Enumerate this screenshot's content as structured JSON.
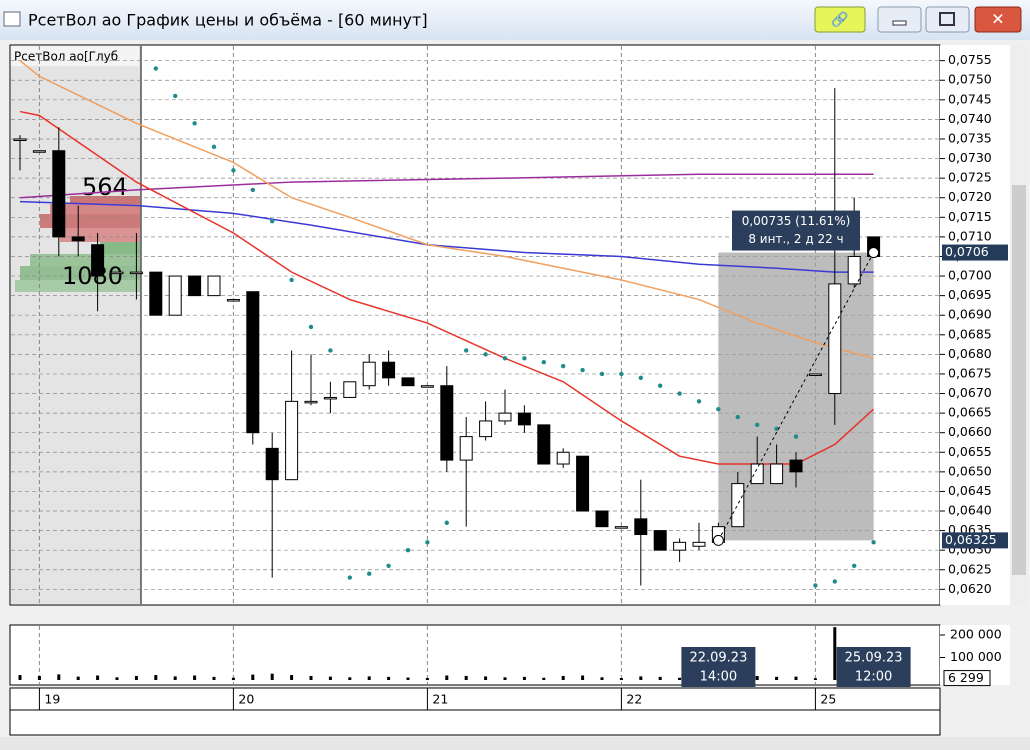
{
  "window": {
    "title": "РсетВол ао График цены и объёма - [60 минут]"
  },
  "chart_data": [
    {
      "type": "candlestick",
      "subtitle": "РсетВол ао[Глуб",
      "categories": [
        null,
        "19",
        null,
        null,
        null,
        null,
        null,
        null,
        null,
        null,
        null,
        "20",
        null,
        null,
        null,
        null,
        null,
        null,
        null,
        null,
        null,
        "21",
        null,
        null,
        null,
        null,
        null,
        null,
        null,
        null,
        null,
        "22",
        null,
        null,
        null,
        null,
        null,
        null,
        null,
        null,
        null,
        "25",
        null,
        null,
        null
      ],
      "open": [
        0.0735,
        0.0732,
        0.0732,
        0.071,
        0.0708,
        0.0701,
        0.0701,
        0.0701,
        0.069,
        0.07,
        0.0695,
        0.0694,
        0.0696,
        0.0656,
        0.0648,
        0.0668,
        0.0669,
        0.0669,
        0.0672,
        0.0678,
        0.0674,
        0.0672,
        0.0672,
        0.0653,
        0.0659,
        0.0663,
        0.0665,
        0.0662,
        0.0652,
        0.0654,
        0.064,
        0.0636,
        0.0638,
        0.0635,
        0.063,
        0.0631,
        0.0632,
        0.0636,
        0.0647,
        0.0647,
        0.0653,
        0.0675,
        0.067,
        0.0698,
        0.071
      ],
      "high": [
        0.0736,
        0.0732,
        0.0738,
        0.0718,
        0.0711,
        0.0701,
        0.0711,
        0.0701,
        0.07,
        0.07,
        0.07,
        0.0694,
        0.0696,
        0.066,
        0.0681,
        0.068,
        0.0673,
        0.0673,
        0.068,
        0.0681,
        0.0674,
        0.0672,
        0.0677,
        0.0664,
        0.0668,
        0.0671,
        0.0667,
        0.0662,
        0.0656,
        0.0654,
        0.064,
        0.0636,
        0.0648,
        0.0635,
        0.0633,
        0.0637,
        0.0637,
        0.065,
        0.0659,
        0.0657,
        0.0655,
        0.0675,
        0.0748,
        0.072,
        0.071
      ],
      "low": [
        0.0727,
        0.0732,
        0.0705,
        0.0705,
        0.0691,
        0.0701,
        0.0694,
        0.069,
        0.069,
        0.0695,
        0.0695,
        0.0694,
        0.0657,
        0.0623,
        0.0648,
        0.0667,
        0.0665,
        0.0669,
        0.0671,
        0.0672,
        0.0672,
        0.0672,
        0.065,
        0.0636,
        0.0658,
        0.0662,
        0.066,
        0.0652,
        0.0651,
        0.064,
        0.0636,
        0.0636,
        0.0621,
        0.063,
        0.0627,
        0.063,
        0.0632,
        0.0636,
        0.0647,
        0.0647,
        0.0646,
        0.0675,
        0.0662,
        0.0697,
        0.0705
      ],
      "close": [
        0.0735,
        0.0732,
        0.071,
        0.0709,
        0.07,
        0.0701,
        0.0701,
        0.069,
        0.07,
        0.0695,
        0.07,
        0.0694,
        0.066,
        0.0648,
        0.0668,
        0.0668,
        0.0669,
        0.0673,
        0.0678,
        0.0674,
        0.0672,
        0.0672,
        0.0653,
        0.0659,
        0.0663,
        0.0665,
        0.0662,
        0.0652,
        0.0655,
        0.064,
        0.0636,
        0.0636,
        0.0634,
        0.063,
        0.0632,
        0.0632,
        0.0636,
        0.0647,
        0.0652,
        0.0652,
        0.065,
        0.0675,
        0.0698,
        0.0705,
        0.0705
      ],
      "series": [
        {
          "style": "line",
          "color": "#9b2d9b",
          "x": [
            0,
            6,
            14,
            25,
            35,
            44
          ],
          "values": [
            0.072,
            0.0722,
            0.0724,
            0.0725,
            0.0726,
            0.0726
          ]
        },
        {
          "style": "line",
          "color": "#3a3ad6",
          "x": [
            0,
            6,
            11,
            15,
            21,
            26,
            31,
            35,
            39,
            42,
            44
          ],
          "values": [
            0.0719,
            0.0718,
            0.0716,
            0.0713,
            0.0708,
            0.0706,
            0.0705,
            0.0703,
            0.0702,
            0.0701,
            0.0701
          ]
        },
        {
          "style": "line",
          "color": "#f0a060",
          "x": [
            0,
            1,
            6,
            11,
            14,
            17,
            21,
            25,
            28,
            31,
            35,
            38,
            41,
            44
          ],
          "values": [
            0.0755,
            0.0751,
            0.0739,
            0.0729,
            0.072,
            0.0715,
            0.0708,
            0.0705,
            0.0702,
            0.0699,
            0.0694,
            0.0688,
            0.0683,
            0.0679
          ]
        },
        {
          "style": "line",
          "color": "#e8332a",
          "x": [
            0,
            1,
            6,
            11,
            14,
            17,
            21,
            25,
            28,
            31,
            34,
            36,
            40,
            42,
            44
          ],
          "values": [
            0.0742,
            0.0741,
            0.0724,
            0.0711,
            0.0701,
            0.0694,
            0.0688,
            0.0679,
            0.0673,
            0.0663,
            0.0654,
            0.0652,
            0.0652,
            0.0657,
            0.0666
          ]
        },
        {
          "style": "dots",
          "color": "#1e8c8c",
          "x": [
            7,
            8,
            9,
            10,
            11,
            12,
            13,
            14,
            15,
            16,
            17,
            18,
            19,
            20,
            21,
            22,
            23,
            24,
            25,
            26,
            27,
            28,
            29,
            30,
            31,
            32,
            33,
            34,
            35,
            36,
            37,
            38,
            39,
            40,
            41,
            42,
            43,
            44
          ],
          "values": [
            0.0753,
            0.0746,
            0.0739,
            0.0733,
            0.0727,
            0.0722,
            0.0714,
            0.0699,
            0.0687,
            0.0681,
            0.0623,
            0.0624,
            0.0626,
            0.063,
            0.0632,
            0.0637,
            0.0681,
            0.068,
            0.0679,
            0.0679,
            0.0678,
            0.0677,
            0.0676,
            0.0675,
            0.0675,
            0.0674,
            0.0672,
            0.067,
            0.0668,
            0.0666,
            0.0664,
            0.0662,
            0.0661,
            0.0659,
            0.0621,
            0.0622,
            0.0626,
            0.0632
          ]
        }
      ],
      "ylim": [
        0.0616,
        0.0759
      ],
      "yticks": [
        {
          "value": 0.062,
          "label": "0,0620"
        },
        {
          "value": 0.0625,
          "label": "0,0625"
        },
        {
          "value": 0.063,
          "label": "0,0630"
        },
        {
          "value": 0.0635,
          "label": "0,0635"
        },
        {
          "value": 0.064,
          "label": "0,0640"
        },
        {
          "value": 0.0645,
          "label": "0,0645"
        },
        {
          "value": 0.065,
          "label": "0,0650"
        },
        {
          "value": 0.0655,
          "label": "0,0655"
        },
        {
          "value": 0.066,
          "label": "0,0660"
        },
        {
          "value": 0.0665,
          "label": "0,0665"
        },
        {
          "value": 0.067,
          "label": "0,0670"
        },
        {
          "value": 0.0675,
          "label": "0,0675"
        },
        {
          "value": 0.068,
          "label": "0,0680"
        },
        {
          "value": 0.0685,
          "label": "0,0685"
        },
        {
          "value": 0.069,
          "label": "0,0690"
        },
        {
          "value": 0.0695,
          "label": "0,0695"
        },
        {
          "value": 0.07,
          "label": "0,0700"
        },
        {
          "value": 0.0705,
          "label": "0,0705"
        },
        {
          "value": 0.071,
          "label": "0,0710"
        },
        {
          "value": 0.0715,
          "label": "0,0715"
        },
        {
          "value": 0.072,
          "label": "0,0720"
        },
        {
          "value": 0.0725,
          "label": "0,0725"
        },
        {
          "value": 0.073,
          "label": "0,0730"
        },
        {
          "value": 0.0735,
          "label": "0,0735"
        },
        {
          "value": 0.074,
          "label": "0,0740"
        },
        {
          "value": 0.0745,
          "label": "0,0745"
        },
        {
          "value": 0.075,
          "label": "0,0750"
        },
        {
          "value": 0.0755,
          "label": "0,0755"
        }
      ],
      "grid": true,
      "profile_labels": [
        564,
        1080
      ],
      "price_markers": [
        {
          "value": 0.0706,
          "label": "0,0706"
        },
        {
          "value": 0.06325,
          "label": "0,06325"
        }
      ],
      "measure": {
        "x": [
          36,
          44
        ],
        "y": [
          0.06325,
          0.0706
        ],
        "text": "0,00735 (11.61%)",
        "detail": "8 инт., 2 д 22 ч"
      }
    },
    {
      "type": "bar",
      "values": [
        22000,
        18000,
        25000,
        15000,
        20000,
        12000,
        18000,
        22000,
        16000,
        20000,
        14000,
        10000,
        24000,
        28000,
        22000,
        18000,
        15000,
        12000,
        16000,
        14000,
        11000,
        9000,
        20000,
        18000,
        16000,
        12000,
        14000,
        10000,
        18000,
        20000,
        12000,
        9000,
        16000,
        14000,
        10000,
        12000,
        11000,
        16000,
        18000,
        14000,
        15000,
        8000,
        235000,
        20000,
        6299
      ],
      "current": {
        "value": 6299,
        "label": "6 299"
      },
      "color": "#000000",
      "ylim": [
        0,
        240000
      ],
      "yticks": [
        {
          "value": 100000,
          "label": "100 000"
        },
        {
          "value": 200000,
          "label": "200 000"
        }
      ],
      "cursor_labels": [
        {
          "x": 36,
          "date": "22.09.23",
          "time": "14:00"
        },
        {
          "x": 44,
          "date": "25.09.23",
          "time": "12:00"
        }
      ]
    }
  ]
}
